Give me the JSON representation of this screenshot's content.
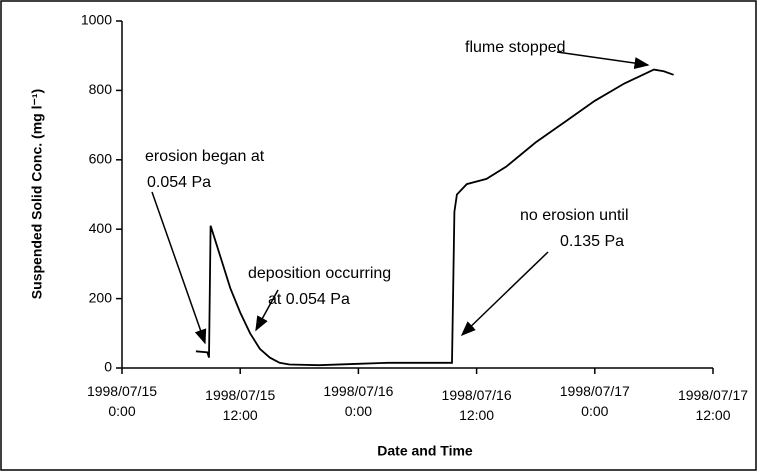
{
  "chart_data": {
    "type": "line",
    "y_label": "Suspended Solid Conc. (mg l⁻¹)",
    "x_label": "Date and Time",
    "annotations": [
      "erosion began at",
      "0.054 Pa",
      "deposition occurring",
      "at 0.054 Pa",
      "flume stopped",
      "no erosion until",
      "0.135 Pa"
    ],
    "x": [
      "1998/07/15 07:30",
      "1998/07/15 08:40",
      "1998/07/15 08:50",
      "1998/07/15 09:00",
      "1998/07/15 10:00",
      "1998/07/15 11:00",
      "1998/07/15 12:00",
      "1998/07/15 13:00",
      "1998/07/15 14:00",
      "1998/07/15 15:00",
      "1998/07/15 16:00",
      "1998/07/15 17:00",
      "1998/07/15 20:00",
      "1998/07/16 00:00",
      "1998/07/16 03:00",
      "1998/07/16 09:30",
      "1998/07/16 09:45",
      "1998/07/16 10:00",
      "1998/07/16 11:00",
      "1998/07/16 13:00",
      "1998/07/16 15:00",
      "1998/07/16 18:00",
      "1998/07/16 21:00",
      "1998/07/17 00:00",
      "1998/07/17 03:00",
      "1998/07/17 06:00",
      "1998/07/17 07:00",
      "1998/07/17 08:00"
    ],
    "series": [
      {
        "color": "#000000",
        "values": [
          48,
          45,
          30,
          410,
          320,
          230,
          160,
          100,
          55,
          30,
          15,
          10,
          8,
          12,
          15,
          15,
          450,
          500,
          530,
          545,
          580,
          650,
          710,
          770,
          820,
          860,
          855,
          845
        ]
      }
    ],
    "xlim": [
      "1998/07/15 00:00",
      "1998/07/17 12:00"
    ],
    "xticks": [
      {
        "value": "1998/07/15 00:00",
        "label": "1998/07/15 0:00"
      },
      {
        "value": "1998/07/15 12:00",
        "label": "1998/07/15 12:00"
      },
      {
        "value": "1998/07/16 00:00",
        "label": "1998/07/16 0:00"
      },
      {
        "value": "1998/07/16 12:00",
        "label": "1998/07/16 12:00"
      },
      {
        "value": "1998/07/17 00:00",
        "label": "1998/07/17 0:00"
      },
      {
        "value": "1998/07/17 12:00",
        "label": "1998/07/17 12:00"
      }
    ],
    "ylim": [
      0,
      1000
    ],
    "yticks": [
      0,
      200,
      400,
      600,
      800,
      1000
    ]
  }
}
